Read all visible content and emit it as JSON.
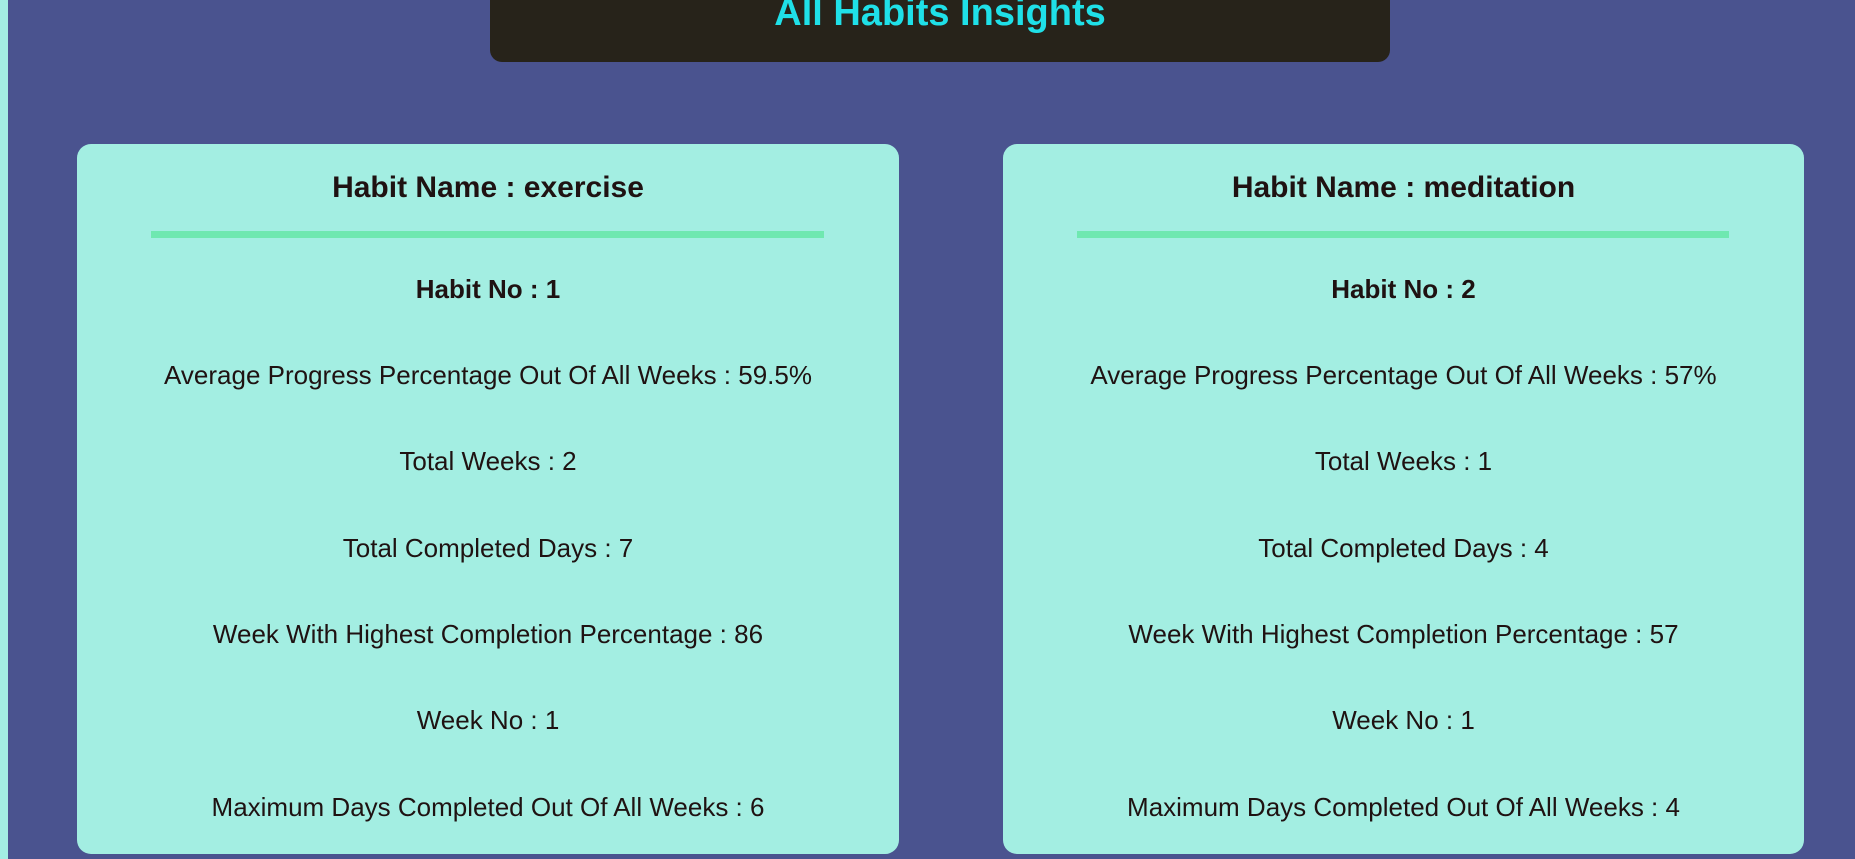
{
  "title": "All Habits Insights",
  "colors": {
    "page_background": "#4a538f",
    "left_strip": "#a3eee3",
    "title_bar": "#27231a",
    "title_text": "#1fe0e8",
    "card_background": "#a3eee2",
    "divider": "#6fe8b0",
    "text": "#1f1212"
  },
  "habits": [
    {
      "name_line": "Habit Name : exercise",
      "number_line": "Habit No : 1",
      "avg_progress_line": "Average Progress Percentage Out Of All Weeks : 59.5%",
      "total_weeks_line": "Total Weeks : 2",
      "total_completed_days_line": "Total Completed Days : 7",
      "highest_week_line": "Week With Highest Completion Percentage : 86",
      "week_no_line": "Week No : 1",
      "max_days_line": "Maximum Days Completed Out Of All Weeks : 6"
    },
    {
      "name_line": "Habit Name : meditation",
      "number_line": "Habit No : 2",
      "avg_progress_line": "Average Progress Percentage Out Of All Weeks : 57%",
      "total_weeks_line": "Total Weeks : 1",
      "total_completed_days_line": "Total Completed Days : 4",
      "highest_week_line": "Week With Highest Completion Percentage : 57",
      "week_no_line": "Week No : 1",
      "max_days_line": "Maximum Days Completed Out Of All Weeks : 4"
    }
  ]
}
